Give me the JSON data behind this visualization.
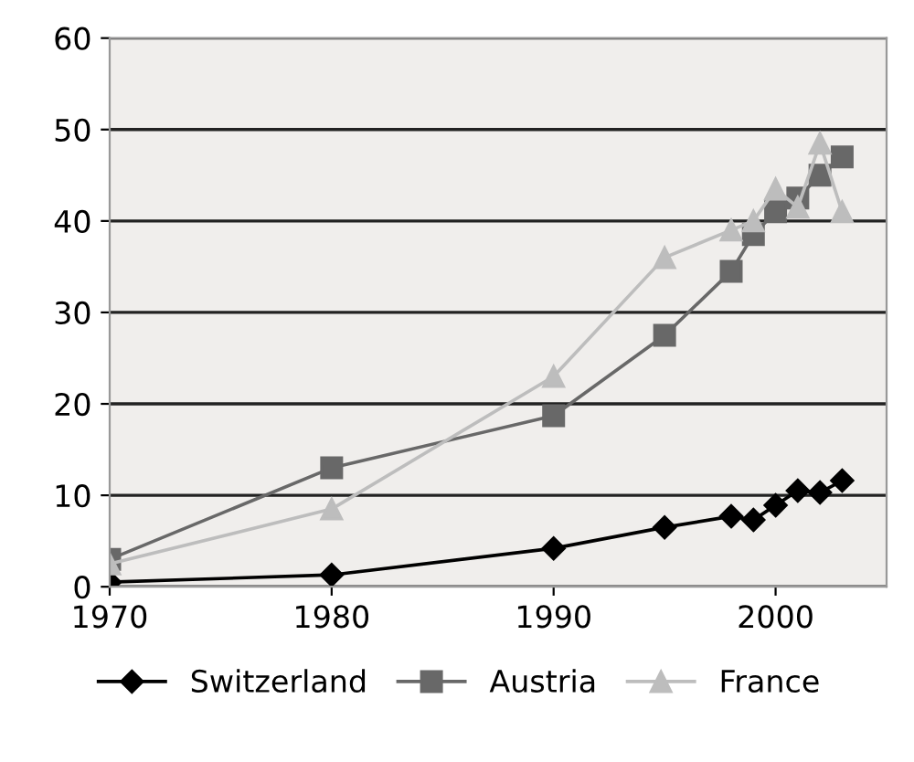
{
  "chart_data": {
    "type": "line",
    "x": [
      1970,
      1980,
      1990,
      1995,
      1998,
      1999,
      2000,
      2001,
      2002,
      2003
    ],
    "series": [
      {
        "name": "Switzerland",
        "color": "#000000",
        "marker": "diamond",
        "values": [
          0.5,
          1.3,
          4.2,
          6.5,
          7.7,
          7.3,
          8.9,
          10.5,
          10.3,
          11.6
        ]
      },
      {
        "name": "Austria",
        "color": "#686868",
        "marker": "square",
        "values": [
          3,
          13,
          18.7,
          27.5,
          34.5,
          38.5,
          41,
          42.5,
          45,
          47
        ]
      },
      {
        "name": "France",
        "color": "#bdbdbd",
        "marker": "triangle",
        "values": [
          2.5,
          8.5,
          23,
          36,
          39,
          40,
          43.5,
          41.5,
          48.5,
          41
        ]
      }
    ],
    "xlim": [
      1970,
      2005
    ],
    "xticks": [
      1970,
      1980,
      1990,
      2000
    ],
    "ylim": [
      0,
      60
    ],
    "yticks": [
      0,
      10,
      20,
      30,
      40,
      50,
      60
    ],
    "grid": "y",
    "legend": "bottom"
  }
}
